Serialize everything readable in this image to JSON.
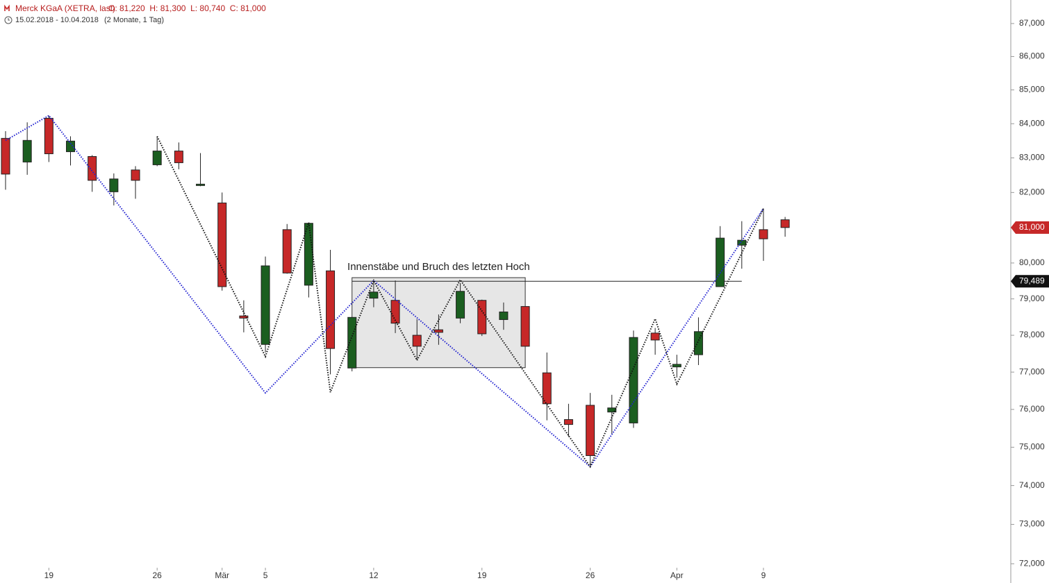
{
  "chart_data": {
    "type": "candlestick",
    "title": "Merck KGaA (XETRA, last)",
    "ohlc_label": "O: 81,220  H: 81,300  L: 80,740  C: 81,000",
    "subtitle": "15.02.2018 - 10.04.2018",
    "period": "(2 Monate, 1 Tag)",
    "log_scale": true,
    "up_color": "#1b5e20",
    "down_color": "#c62828",
    "categories": [
      null,
      null,
      "19",
      null,
      null,
      null,
      null,
      "26",
      null,
      null,
      "Mär",
      null,
      "5",
      null,
      null,
      null,
      null,
      "12",
      null,
      null,
      null,
      null,
      "19",
      null,
      null,
      null,
      null,
      "26",
      null,
      null,
      null,
      "Apr",
      null,
      null,
      null,
      "9",
      null
    ],
    "open": [
      83570,
      82880,
      84160,
      83180,
      83040,
      82020,
      82650,
      82800,
      83200,
      82200,
      81700,
      78530,
      77750,
      80940,
      79380,
      79780,
      77110,
      79020,
      78960,
      78000,
      78150,
      78470,
      78960,
      78430,
      78790,
      76980,
      75730,
      76110,
      75930,
      75640,
      78060,
      77140,
      77470,
      79340,
      80500,
      80940,
      81220
    ],
    "high": [
      83780,
      84040,
      84240,
      83630,
      83080,
      82550,
      82760,
      83630,
      83450,
      83140,
      82000,
      78960,
      80180,
      81100,
      81140,
      80370,
      78490,
      79550,
      79510,
      78440,
      78570,
      79440,
      78980,
      78900,
      78790,
      77530,
      76150,
      76440,
      76390,
      78130,
      78200,
      77470,
      78490,
      81040,
      81180,
      81540,
      81300
    ],
    "low": [
      82080,
      82510,
      82880,
      82780,
      82020,
      81630,
      81820,
      82760,
      82670,
      82180,
      79230,
      78080,
      77530,
      79700,
      79040,
      76940,
      77020,
      78770,
      78060,
      77320,
      77740,
      78330,
      77980,
      78150,
      77700,
      75710,
      75280,
      74490,
      75330,
      75510,
      77470,
      76850,
      77190,
      79330,
      79840,
      80060,
      80740
    ],
    "close": [
      82530,
      83510,
      83120,
      83490,
      82350,
      82390,
      82350,
      83200,
      82860,
      82240,
      79340,
      78470,
      79920,
      79720,
      81120,
      77640,
      78490,
      79190,
      78330,
      77700,
      78080,
      79210,
      78040,
      78640,
      77700,
      76150,
      75600,
      74780,
      76040,
      77940,
      77870,
      77210,
      78100,
      80700,
      80640,
      80680,
      81000
    ],
    "ylim": [
      71900,
      87720
    ],
    "yticks": [
      {
        "value": 72000,
        "label": "72,000"
      },
      {
        "value": 73000,
        "label": "73,000"
      },
      {
        "value": 74000,
        "label": "74,000"
      },
      {
        "value": 75000,
        "label": "75,000"
      },
      {
        "value": 76000,
        "label": "76,000"
      },
      {
        "value": 77000,
        "label": "77,000"
      },
      {
        "value": 78000,
        "label": "78,000"
      },
      {
        "value": 79000,
        "label": "79,000"
      },
      {
        "value": 80000,
        "label": "80,000"
      },
      {
        "value": 81000,
        "label": "81,000"
      },
      {
        "value": 82000,
        "label": "82,000"
      },
      {
        "value": 83000,
        "label": "83,000"
      },
      {
        "value": 84000,
        "label": "84,000"
      },
      {
        "value": 85000,
        "label": "85,000"
      },
      {
        "value": 86000,
        "label": "86,000"
      },
      {
        "value": 87000,
        "label": "87,000"
      }
    ],
    "price_tags": [
      {
        "value": 81000,
        "label": "81,000",
        "color": "#c62828"
      },
      {
        "value": 79489,
        "label": "79,489",
        "color": "#111111"
      }
    ],
    "zigzags": [
      {
        "color": "#2020d0",
        "at": [
          0,
          2,
          12,
          17,
          27,
          35
        ],
        "values": [
          83510,
          84240,
          76440,
          79510,
          74490,
          81540
        ]
      },
      {
        "color": "#111111",
        "at": [
          7,
          12,
          14,
          15,
          17,
          19,
          21,
          27,
          30,
          31,
          33,
          35
        ],
        "values": [
          83630,
          77420,
          81140,
          76460,
          79510,
          77320,
          79530,
          74490,
          78450,
          76680,
          79040,
          81540
        ]
      }
    ],
    "box": {
      "from": 16,
      "to": 24,
      "top": 79590,
      "bottom": 77120,
      "label": "Innenstäbe und Bruch des letzten Hoch"
    },
    "level_line": {
      "from": 16,
      "to": 34,
      "value": 79489
    }
  }
}
